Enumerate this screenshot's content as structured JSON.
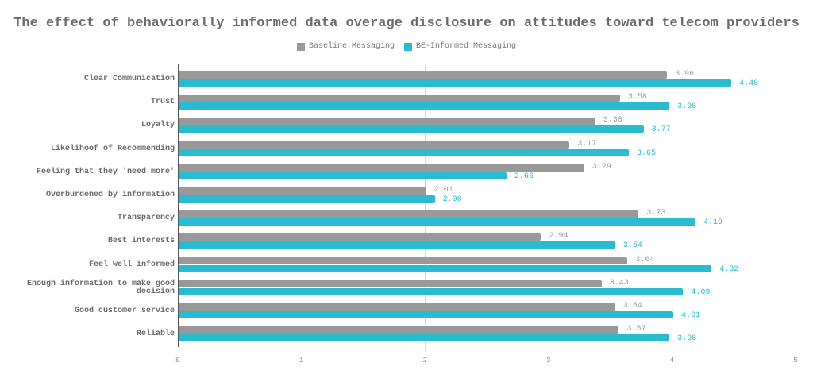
{
  "chart_data": {
    "type": "bar",
    "orientation": "horizontal",
    "title": "The effect of behaviorally informed data overage disclosure on attitudes toward telecom providers",
    "xlabel": "",
    "ylabel": "",
    "xlim": [
      0,
      5
    ],
    "x_ticks": [
      "0",
      "1",
      "2",
      "3",
      "4",
      "5"
    ],
    "grid": true,
    "legend_position": "top",
    "categories": [
      "Clear Communication",
      "Trust",
      "Loyalty",
      "Likelihoof of Recommending",
      "Feeling that they 'need more'",
      "Overburdened by information",
      "Transparency",
      "Best interests",
      "Feel well informed",
      "Enough information to make good decision",
      "Good customer service",
      "Reliable"
    ],
    "series": [
      {
        "name": "Baseline Messaging",
        "color": "#999999",
        "values": [
          3.96,
          3.58,
          3.38,
          3.17,
          3.29,
          2.01,
          3.73,
          2.94,
          3.64,
          3.43,
          3.54,
          3.57
        ]
      },
      {
        "name": "BE-Informed Messaging",
        "color": "#2bbbd0",
        "values": [
          4.48,
          3.98,
          3.77,
          3.65,
          2.66,
          2.08,
          4.19,
          3.54,
          4.32,
          4.09,
          4.01,
          3.98
        ]
      }
    ]
  },
  "labels": {
    "title": "The effect of behaviorally informed data overage disclosure on attitudes toward telecom providers",
    "legend_baseline": "Baseline Messaging",
    "legend_be": "BE-Informed Messaging",
    "ticks": [
      "0",
      "1",
      "2",
      "3",
      "4",
      "5"
    ],
    "rows": [
      {
        "label": "Clear Communication",
        "line1": "Clear Communication",
        "line2": "",
        "a": "3.96",
        "b": "4.48"
      },
      {
        "label": "Trust",
        "line1": "Trust",
        "line2": "",
        "a": "3.58",
        "b": "3.98"
      },
      {
        "label": "Loyalty",
        "line1": "Loyalty",
        "line2": "",
        "a": "3.38",
        "b": "3.77"
      },
      {
        "label": "Likelihoof of Recommending",
        "line1": "Likelihoof of Recommending",
        "line2": "",
        "a": "3.17",
        "b": "3.65"
      },
      {
        "label": "Feeling that they 'need more'",
        "line1": "Feeling that they 'need more'",
        "line2": "",
        "a": "3.29",
        "b": "2.66"
      },
      {
        "label": "Overburdened by information",
        "line1": "Overburdened by information",
        "line2": "",
        "a": "2.01",
        "b": "2.08"
      },
      {
        "label": "Transparency",
        "line1": "Transparency",
        "line2": "",
        "a": "3.73",
        "b": "4.19"
      },
      {
        "label": "Best interests",
        "line1": "Best interests",
        "line2": "",
        "a": "2.94",
        "b": "3.54"
      },
      {
        "label": "Feel well informed",
        "line1": "Feel well informed",
        "line2": "",
        "a": "3.64",
        "b": "4.32"
      },
      {
        "label": "Enough information to make good decision",
        "line1": "Enough information to make good",
        "line2": "decision",
        "a": "3.43",
        "b": "4.09"
      },
      {
        "label": "Good customer service",
        "line1": "Good customer service",
        "line2": "",
        "a": "3.54",
        "b": "4.01"
      },
      {
        "label": "Reliable",
        "line1": "Reliable",
        "line2": "",
        "a": "3.57",
        "b": "3.98"
      }
    ]
  }
}
